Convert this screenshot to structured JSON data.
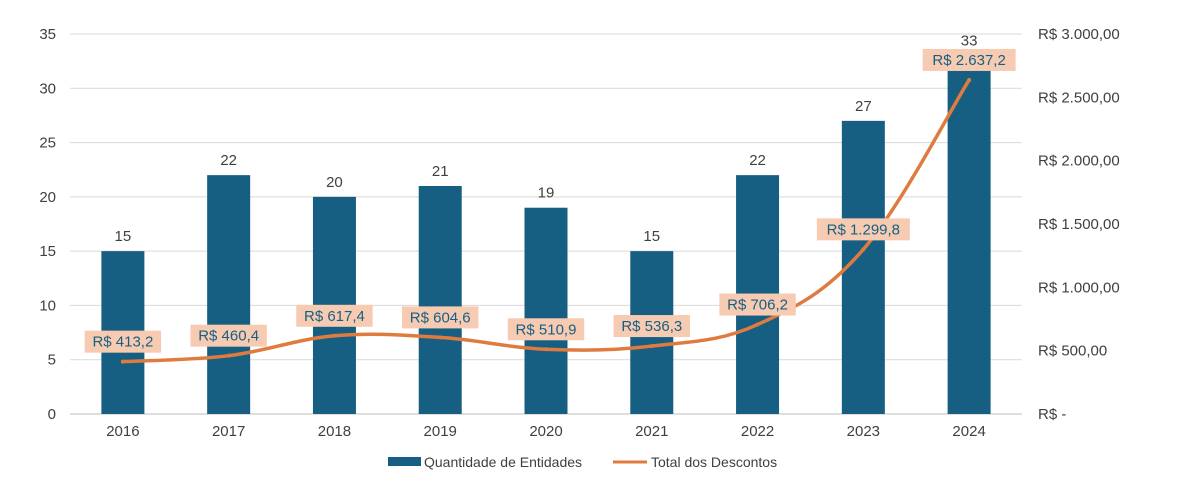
{
  "chart_data": {
    "type": "bar+line",
    "categories": [
      "2016",
      "2017",
      "2018",
      "2019",
      "2020",
      "2021",
      "2022",
      "2023",
      "2024"
    ],
    "series": [
      {
        "name": "Quantidade de Entidades",
        "type": "bar",
        "axis": "left",
        "values": [
          15,
          22,
          20,
          21,
          19,
          15,
          22,
          27,
          33
        ],
        "labels": [
          "15",
          "22",
          "20",
          "21",
          "19",
          "15",
          "22",
          "27",
          "33"
        ],
        "color": "#175F82"
      },
      {
        "name": "Total dos Descontos",
        "type": "line",
        "axis": "right",
        "values": [
          413.2,
          460.4,
          617.4,
          604.6,
          510.9,
          536.3,
          706.2,
          1299.8,
          2637.2
        ],
        "labels": [
          "R$ 413,2",
          "R$ 460,4",
          "R$ 617,4",
          "R$ 604,6",
          "R$ 510,9",
          "R$ 536,3",
          "R$ 706,2",
          "R$ 1.299,8",
          "R$ 2.637,2"
        ],
        "color": "#E07B3F",
        "label_background": "#F6CBB2",
        "label_text_color": "#175F82"
      }
    ],
    "y_left": {
      "min": 0,
      "max": 35,
      "ticks": [
        0,
        5,
        10,
        15,
        20,
        25,
        30,
        35
      ],
      "tick_labels": [
        "0",
        "5",
        "10",
        "15",
        "20",
        "25",
        "30",
        "35"
      ]
    },
    "y_right": {
      "min": 0,
      "max": 3000,
      "ticks": [
        0,
        500,
        1000,
        1500,
        2000,
        2500,
        3000
      ],
      "tick_labels": [
        "R$ -",
        "R$ 500,00",
        "R$ 1.000,00",
        "R$ 1.500,00",
        "R$ 2.000,00",
        "R$ 2.500,00",
        "R$ 3.000,00"
      ]
    },
    "grid": true,
    "legend": {
      "position": "bottom",
      "items": [
        {
          "label": "Quantidade de Entidades",
          "kind": "bar",
          "color": "#175F82"
        },
        {
          "label": "Total dos Descontos",
          "kind": "line",
          "color": "#E07B3F"
        }
      ]
    },
    "colors": {
      "grid": "#D9D9D9",
      "axis": "#BFBFBF",
      "text": "#404040"
    }
  }
}
